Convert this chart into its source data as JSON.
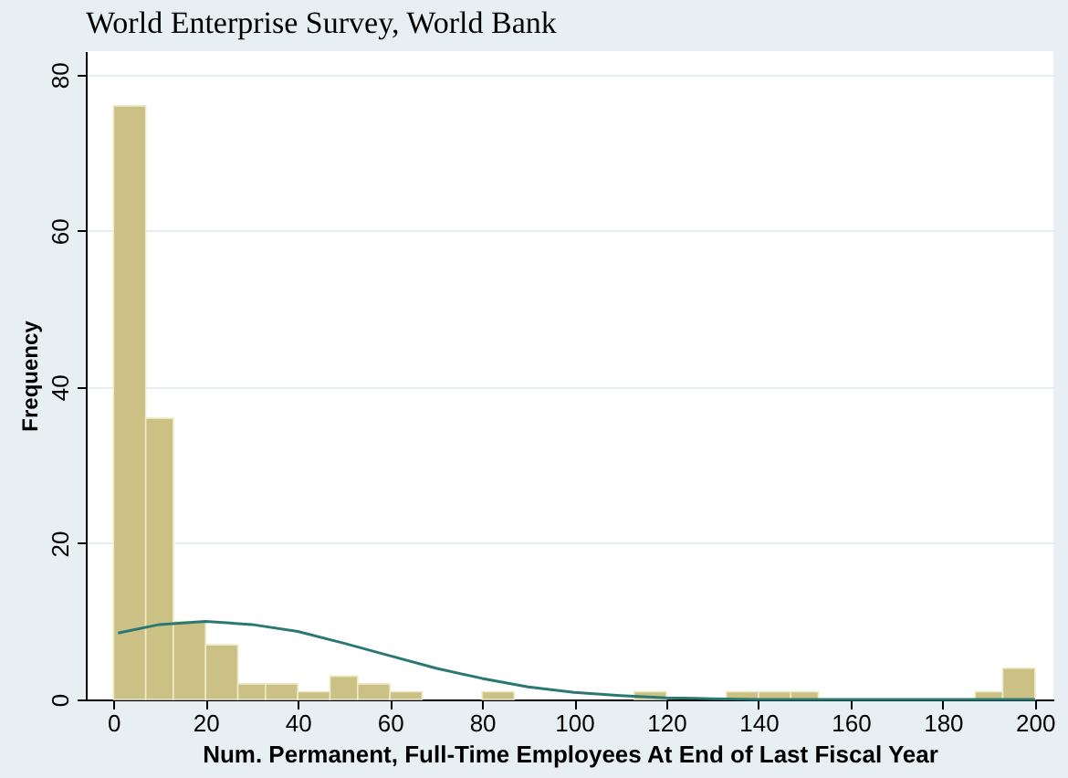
{
  "chart_data": {
    "type": "histogram",
    "title": "World Enterprise Survey, World Bank",
    "xlabel": "Num. Permanent, Full-Time Employees At End of Last Fiscal Year",
    "ylabel": "Frequency",
    "bins": [
      0,
      7,
      13,
      20,
      27,
      33,
      40,
      47,
      53,
      60,
      67,
      80,
      87,
      113,
      120,
      133,
      140,
      147,
      153,
      187,
      193,
      200
    ],
    "values": [
      76,
      36,
      10,
      7,
      2,
      2,
      1,
      3,
      2,
      1,
      0,
      1,
      0,
      1,
      0,
      1,
      1,
      1,
      0,
      1,
      4
    ],
    "color": "#cbc185",
    "series": [
      {
        "type": "line",
        "color": "#2a7873",
        "x": [
          1,
          10,
          20,
          30,
          40,
          50,
          60,
          70,
          80,
          90,
          100,
          110,
          120,
          130,
          140,
          160,
          180,
          200
        ],
        "values": [
          8.5,
          9.6,
          10,
          9.6,
          8.7,
          7.2,
          5.6,
          4,
          2.7,
          1.6,
          0.9,
          0.5,
          0.2,
          0.1,
          0,
          0,
          0,
          0
        ]
      }
    ],
    "xlim": [
      -6,
      204
    ],
    "xticks": [
      0,
      20,
      40,
      60,
      80,
      100,
      120,
      140,
      160,
      180,
      200
    ],
    "ylim": [
      0,
      83
    ],
    "yticks": [
      0,
      20,
      40,
      60,
      80
    ],
    "grid": "y"
  }
}
